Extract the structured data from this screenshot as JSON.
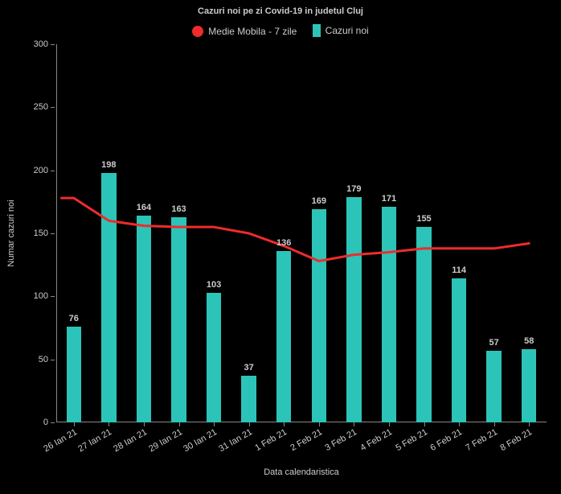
{
  "chart": {
    "type": "bar+line",
    "title": "Cazuri noi pe zi Covid-19 in judetul Cluj",
    "title_fontsize": 11,
    "title_color": "#cccccc",
    "background_color": "#000000",
    "xlabel": "Data calendaristica",
    "ylabel": "Numar cazuri noi",
    "label_fontsize": 11,
    "label_color": "#cccccc",
    "ylim": [
      0,
      300
    ],
    "ytick_step": 50,
    "yticks": [
      0,
      50,
      100,
      150,
      200,
      250,
      300
    ],
    "categories": [
      "26 Ian 21",
      "27 Ian 21",
      "28 Ian 21",
      "29 Ian 21",
      "30 Ian 21",
      "31 Ian 21",
      "1 Feb 21",
      "2 Feb 21",
      "3 Feb 21",
      "4 Feb 21",
      "5 Feb 21",
      "6 Feb 21",
      "7 Feb 21",
      "8 Feb 21"
    ],
    "bars": {
      "label": "Cazuri noi",
      "values": [
        76,
        198,
        164,
        163,
        103,
        37,
        136,
        169,
        179,
        171,
        155,
        114,
        57,
        58
      ],
      "color": "#2cc4b8",
      "bar_width": 0.42
    },
    "line": {
      "label": "Medie Mobila - 7 zile",
      "values": [
        178,
        160,
        156,
        155,
        155,
        150,
        140,
        128,
        133,
        135,
        138,
        138,
        138,
        142
      ],
      "color": "#ef2b2b",
      "line_width": 3
    },
    "legend": {
      "items": [
        {
          "label": "Medie Mobila - 7 zile",
          "color": "#ef2b2b",
          "shape": "circle"
        },
        {
          "label": "Cazuri noi",
          "color": "#2cc4b8",
          "shape": "rect"
        }
      ],
      "fontsize": 12,
      "color": "#cccccc"
    },
    "tick_fontsize": 11,
    "tick_color": "#cccccc",
    "axis_color": "#888888",
    "xtick_rotation": -30
  }
}
